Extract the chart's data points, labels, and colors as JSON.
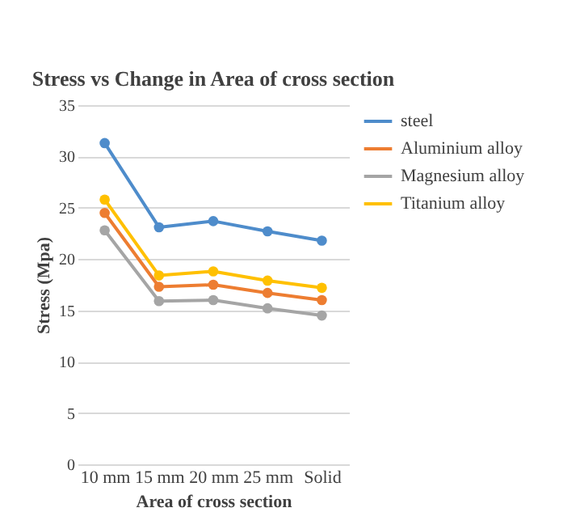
{
  "chart_data": {
    "type": "line",
    "title": "Stress vs Change in Area of cross section",
    "xlabel": "Area of cross section",
    "ylabel": "Stress (Mpa)",
    "categories": [
      "10 mm",
      "15 mm",
      "20 mm",
      "25 mm",
      "Solid"
    ],
    "series": [
      {
        "name": "steel",
        "color": "#4e8ccb",
        "values": [
          31.3,
          23.1,
          23.7,
          22.7,
          21.8
        ]
      },
      {
        "name": "Aluminium alloy",
        "color": "#ed7d31",
        "values": [
          24.5,
          17.3,
          17.5,
          16.7,
          16.0
        ]
      },
      {
        "name": "Magnesium alloy",
        "color": "#a5a5a5",
        "values": [
          22.8,
          15.9,
          16.0,
          15.2,
          14.5
        ]
      },
      {
        "name": "Titanium alloy",
        "color": "#ffc000",
        "values": [
          25.8,
          18.4,
          18.8,
          17.9,
          17.2
        ]
      }
    ],
    "ylim": [
      0,
      35
    ],
    "yticks": [
      0,
      5,
      10,
      15,
      20,
      25,
      30,
      35
    ],
    "grid": "y",
    "legend": "right",
    "marker": "circle",
    "line_style": "solid"
  }
}
